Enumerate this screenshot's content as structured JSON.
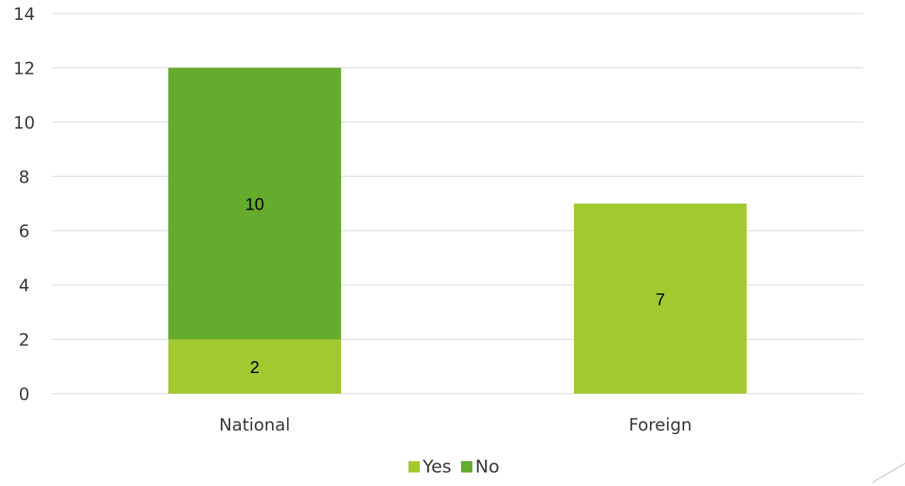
{
  "chart_data": {
    "type": "bar",
    "stacked": true,
    "title": "",
    "xlabel": "",
    "ylabel": "",
    "categories": [
      "National",
      "Foreign"
    ],
    "series": [
      {
        "name": "Yes",
        "values": [
          2,
          7
        ],
        "color": "#a2c930"
      },
      {
        "name": "No",
        "values": [
          10,
          0
        ],
        "color": "#64ab2e"
      }
    ],
    "ylim": [
      0,
      14
    ],
    "yticks": [
      0,
      2,
      4,
      6,
      8,
      10,
      12,
      14
    ],
    "grid": true,
    "legend_position": "bottom"
  }
}
